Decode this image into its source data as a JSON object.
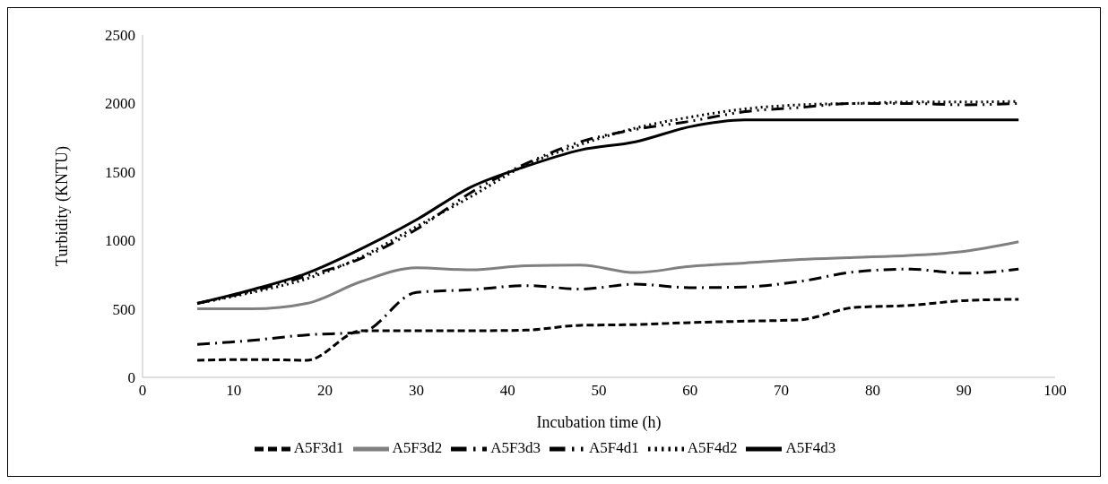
{
  "chart_data": {
    "type": "line",
    "xlabel": "Incubation time (h)",
    "ylabel": "Turbidity (KNTU)",
    "x": [
      6,
      12,
      18,
      24,
      30,
      36,
      42,
      48,
      54,
      60,
      66,
      72,
      78,
      84,
      90,
      96
    ],
    "xlim": [
      0,
      100
    ],
    "xticks": [
      0,
      10,
      20,
      30,
      40,
      50,
      60,
      70,
      80,
      90,
      100
    ],
    "ylim": [
      0,
      2500
    ],
    "yticks": [
      0,
      500,
      1000,
      1500,
      2000,
      2500
    ],
    "grid": false,
    "legend": "bottom",
    "marker": "none",
    "series": [
      {
        "name": "A5F3d1",
        "color": "#000000",
        "line_style": "dashed",
        "values": [
          125,
          130,
          125,
          340,
          340,
          340,
          345,
          380,
          385,
          400,
          410,
          420,
          510,
          525,
          560,
          570
        ]
      },
      {
        "name": "A5F3d2",
        "color": "#808080",
        "line_style": "solid",
        "values": [
          500,
          500,
          540,
          700,
          800,
          785,
          815,
          820,
          765,
          810,
          835,
          860,
          875,
          890,
          920,
          990
        ]
      },
      {
        "name": "A5F3d3",
        "color": "#000000",
        "line_style": "dashdot",
        "values": [
          240,
          270,
          310,
          330,
          620,
          640,
          670,
          645,
          680,
          655,
          660,
          700,
          770,
          790,
          760,
          790
        ]
      },
      {
        "name": "A5F4d1",
        "color": "#000000",
        "line_style": "dashdotdot",
        "values": [
          540,
          630,
          740,
          870,
          1080,
          1350,
          1560,
          1720,
          1810,
          1870,
          1940,
          1970,
          2000,
          2000,
          1990,
          2000
        ]
      },
      {
        "name": "A5F4d2",
        "color": "#000000",
        "line_style": "dotted",
        "values": [
          540,
          620,
          720,
          880,
          1100,
          1320,
          1550,
          1700,
          1820,
          1900,
          1960,
          1990,
          2000,
          2010,
          2010,
          2015
        ]
      },
      {
        "name": "A5F4d3",
        "color": "#000000",
        "line_style": "solid",
        "values": [
          540,
          640,
          760,
          940,
          1150,
          1390,
          1540,
          1660,
          1720,
          1830,
          1880,
          1880,
          1880,
          1880,
          1880,
          1880
        ]
      }
    ]
  }
}
